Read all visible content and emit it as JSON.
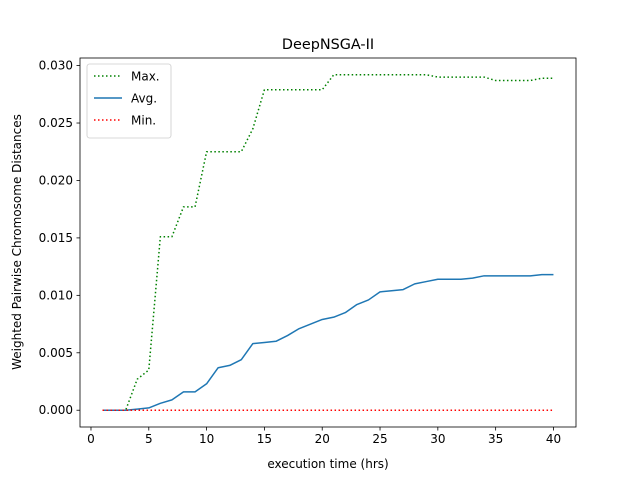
{
  "chart_data": {
    "type": "line",
    "title": "DeepNSGA-II",
    "xlabel": "execution time (hrs)",
    "ylabel": "Weighted Pairwise Chromosome Distances",
    "xlim": [
      -0.95,
      41.95
    ],
    "ylim": [
      -0.00146,
      0.03066
    ],
    "xticks": [
      0,
      5,
      10,
      15,
      20,
      25,
      30,
      35,
      40
    ],
    "xtick_labels": [
      "0",
      "5",
      "10",
      "15",
      "20",
      "25",
      "30",
      "35",
      "40"
    ],
    "yticks": [
      0.0,
      0.005,
      0.01,
      0.015,
      0.02,
      0.025,
      0.03
    ],
    "ytick_labels": [
      "0.000",
      "0.005",
      "0.010",
      "0.015",
      "0.020",
      "0.025",
      "0.030"
    ],
    "grid": false,
    "legend_position": "upper-left",
    "x": [
      1,
      2,
      3,
      4,
      5,
      6,
      7,
      8,
      9,
      10,
      11,
      12,
      13,
      14,
      15,
      16,
      17,
      18,
      19,
      20,
      21,
      22,
      23,
      24,
      25,
      26,
      27,
      28,
      29,
      30,
      31,
      32,
      33,
      34,
      35,
      36,
      37,
      38,
      39,
      40
    ],
    "series": [
      {
        "name": "Max.",
        "color": "#008000",
        "style": "dotted",
        "values": [
          0.0,
          0.0,
          0.0,
          0.0027,
          0.0035,
          0.0151,
          0.0151,
          0.0177,
          0.0177,
          0.0225,
          0.0225,
          0.0225,
          0.0225,
          0.0245,
          0.0279,
          0.0279,
          0.0279,
          0.0279,
          0.0279,
          0.0279,
          0.0292,
          0.0292,
          0.0292,
          0.0292,
          0.0292,
          0.0292,
          0.0292,
          0.0292,
          0.0292,
          0.029,
          0.029,
          0.029,
          0.029,
          0.029,
          0.0287,
          0.0287,
          0.0287,
          0.0287,
          0.0289,
          0.0289
        ]
      },
      {
        "name": "Avg.",
        "color": "#1f77b4",
        "style": "solid",
        "values": [
          0.0,
          0.0,
          0.0,
          0.0001,
          0.0002,
          0.0006,
          0.0009,
          0.0016,
          0.0016,
          0.0023,
          0.0037,
          0.0039,
          0.0044,
          0.0058,
          0.0059,
          0.006,
          0.0065,
          0.0071,
          0.0075,
          0.0079,
          0.0081,
          0.0085,
          0.0092,
          0.0096,
          0.0103,
          0.0104,
          0.0105,
          0.011,
          0.0112,
          0.0114,
          0.0114,
          0.0114,
          0.0115,
          0.0117,
          0.0117,
          0.0117,
          0.0117,
          0.0117,
          0.0118,
          0.0118
        ]
      },
      {
        "name": "Min.",
        "color": "#ff0000",
        "style": "dotted",
        "values": [
          0.0,
          0.0,
          0.0,
          0.0,
          0.0,
          0.0,
          0.0,
          0.0,
          0.0,
          0.0,
          0.0,
          0.0,
          0.0,
          0.0,
          0.0,
          0.0,
          0.0,
          0.0,
          0.0,
          0.0,
          0.0,
          0.0,
          0.0,
          0.0,
          0.0,
          0.0,
          0.0,
          0.0,
          0.0,
          0.0,
          0.0,
          0.0,
          0.0,
          0.0,
          0.0,
          0.0,
          0.0,
          0.0,
          0.0,
          0.0
        ]
      }
    ]
  }
}
